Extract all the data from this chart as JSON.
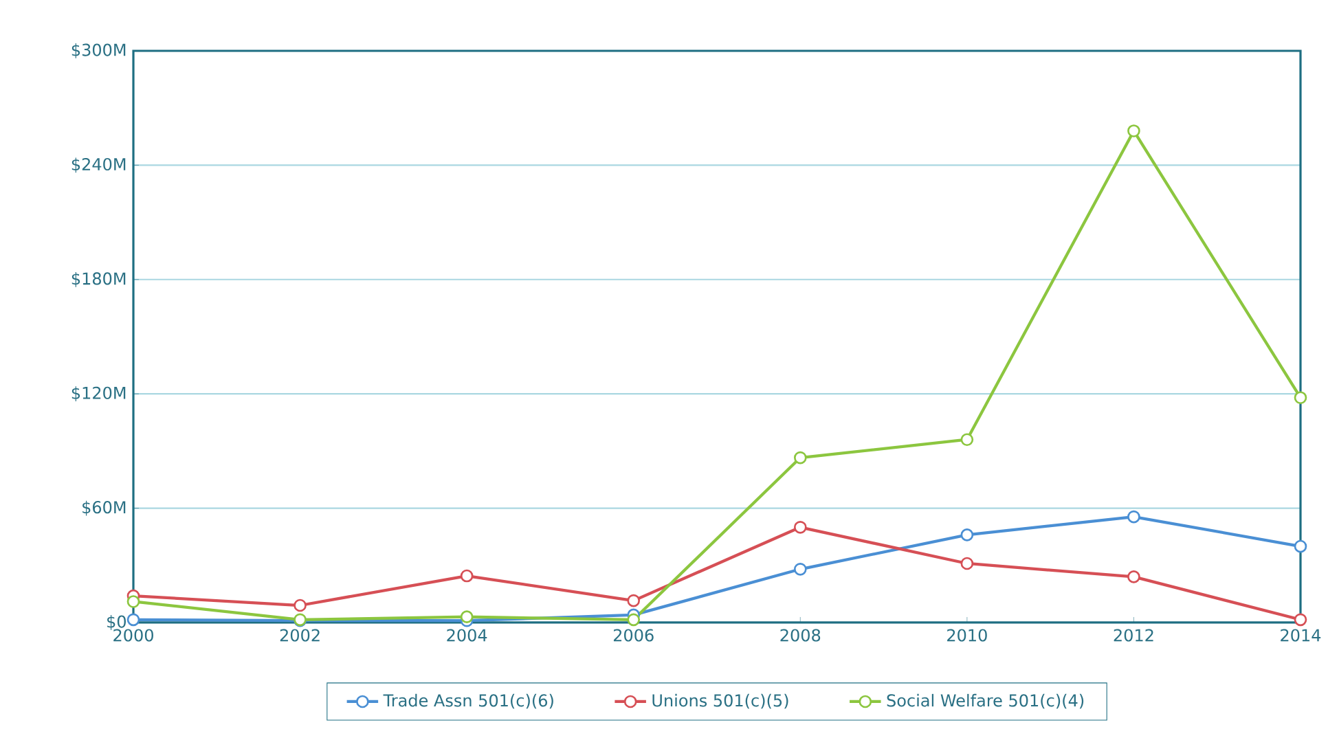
{
  "chart_data": {
    "type": "line",
    "x": [
      2000,
      2002,
      2004,
      2006,
      2008,
      2010,
      2012,
      2014
    ],
    "series": [
      {
        "name": "Trade Assn 501(c)(6)",
        "color": "#4a8fd4",
        "values": [
          1.5,
          1,
          1,
          4,
          28,
          46,
          55.5,
          40
        ]
      },
      {
        "name": "Unions 501(c)(5)",
        "color": "#d64f55",
        "values": [
          14,
          9,
          24.5,
          11.5,
          50,
          31,
          24,
          1.5
        ]
      },
      {
        "name": "Social Welfare 501(c)(4)",
        "color": "#8cc63f",
        "values": [
          11,
          1.5,
          3,
          1.5,
          86.5,
          96,
          258,
          118
        ]
      }
    ],
    "xlim": [
      2000,
      2014
    ],
    "ylim": [
      0,
      300
    ],
    "xticks": [
      2000,
      2002,
      2004,
      2006,
      2008,
      2010,
      2012,
      2014
    ],
    "yticks": [
      {
        "value": 0,
        "label": "$0"
      },
      {
        "value": 60,
        "label": "$60M"
      },
      {
        "value": 120,
        "label": "$120M"
      },
      {
        "value": 180,
        "label": "$180M"
      },
      {
        "value": 240,
        "label": "$240M"
      },
      {
        "value": 300,
        "label": "$300M"
      }
    ],
    "grid": "y",
    "legend": "bottom",
    "marker": "circle",
    "line_style": "solid"
  }
}
